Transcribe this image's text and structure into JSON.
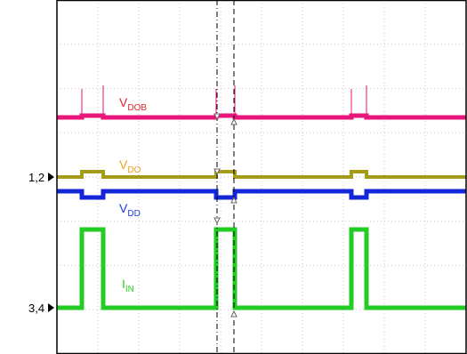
{
  "chart_data": {
    "type": "line",
    "colors": {
      "grid": "#c8c8c8",
      "frame": "#000000",
      "cursor": "#000000"
    },
    "series": [
      {
        "name": "V",
        "sub": "DOB",
        "color": "#e8157a",
        "label_color": "#e8232c"
      },
      {
        "name": "V",
        "sub": "DO",
        "color": "#a59a1a",
        "label_color": "#f2a01a"
      },
      {
        "name": "V",
        "sub": "DD",
        "color": "#1426d8",
        "label_color": "#1e3ae0"
      },
      {
        "name": "I",
        "sub": "IN",
        "color": "#22cc22",
        "label_color": "#2fcf2f"
      }
    ],
    "markers": [
      {
        "label": "1,2"
      },
      {
        "label": "3,4"
      }
    ]
  }
}
